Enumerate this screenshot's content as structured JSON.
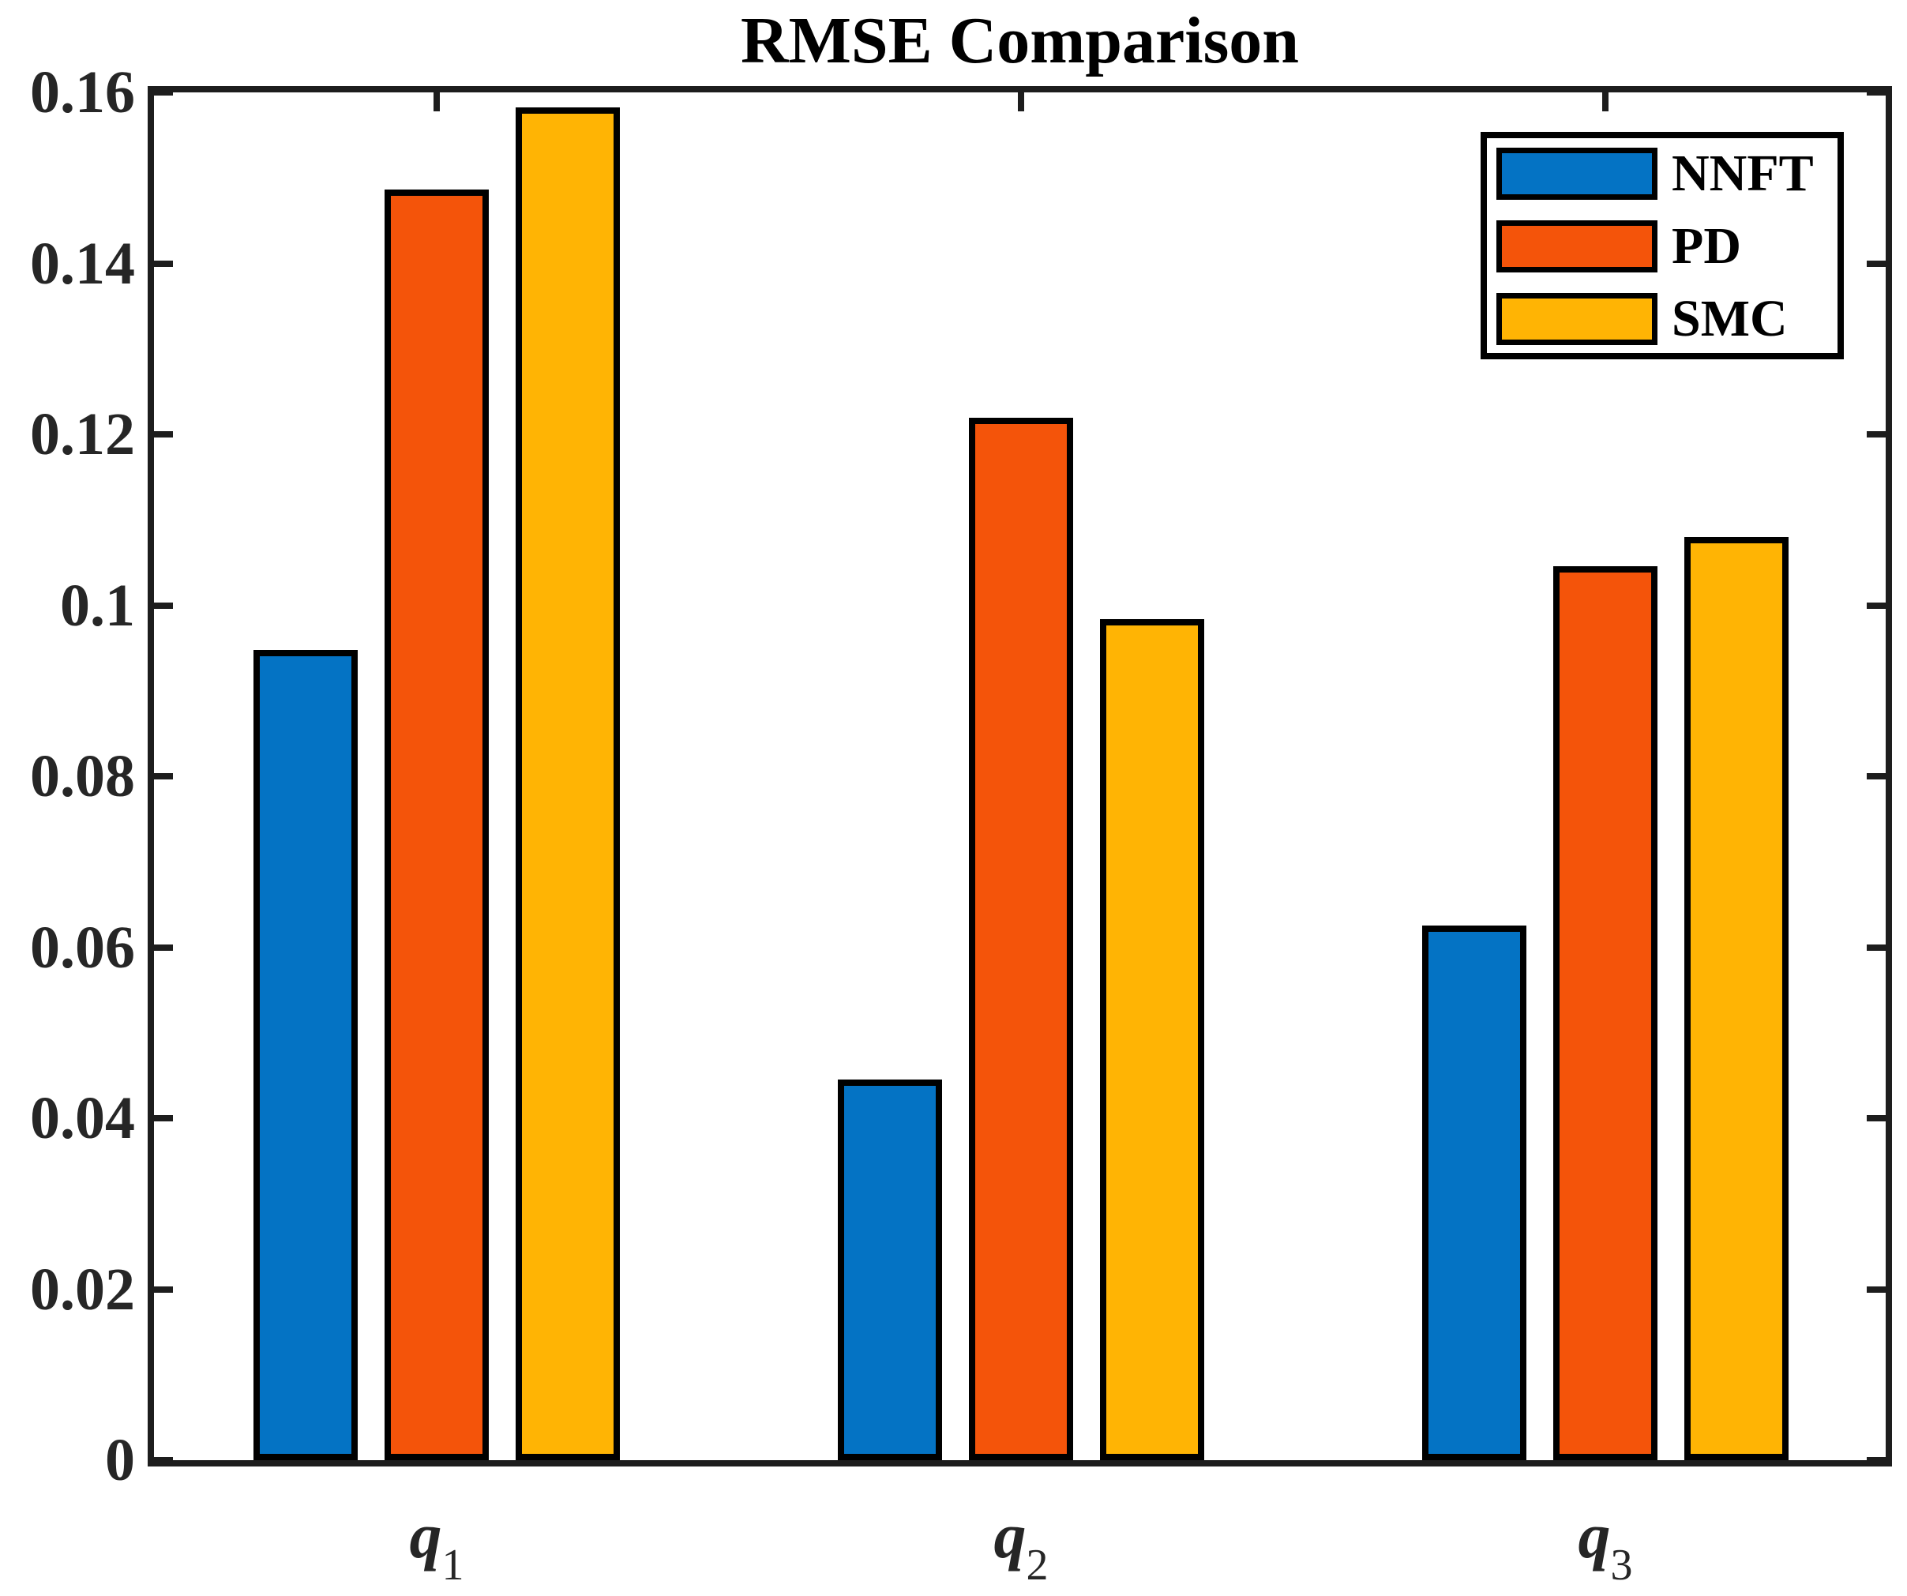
{
  "chart_data": {
    "type": "bar",
    "title": "RMSE Comparison",
    "categories": [
      "q1",
      "q2",
      "q3"
    ],
    "category_base": "q",
    "category_subscripts": [
      "1",
      "2",
      "3"
    ],
    "series": [
      {
        "name": "NNFT",
        "color": "#0473C4",
        "values": [
          0.0948,
          0.0445,
          0.0625
        ]
      },
      {
        "name": "PD",
        "color": "#F4540A",
        "values": [
          0.1486,
          0.1219,
          0.1046
        ]
      },
      {
        "name": "SMC",
        "color": "#FFB404",
        "values": [
          0.1582,
          0.0984,
          0.108
        ]
      }
    ],
    "ylim": [
      0,
      0.16
    ],
    "yticks": [
      0,
      0.02,
      0.04,
      0.06,
      0.08,
      0.1,
      0.12,
      0.14,
      0.16
    ],
    "ytick_labels": [
      "0",
      "0.02",
      "0.04",
      "0.06",
      "0.08",
      "0.1",
      "0.12",
      "0.14",
      "0.16"
    ],
    "xlabel": "",
    "ylabel": "",
    "grid": false,
    "legend_position": "top-right",
    "bar_edge_color": "#000000",
    "axis_color": "#1d1d1d",
    "tick_label_color": "#262626",
    "background_color": "#ffffff"
  }
}
